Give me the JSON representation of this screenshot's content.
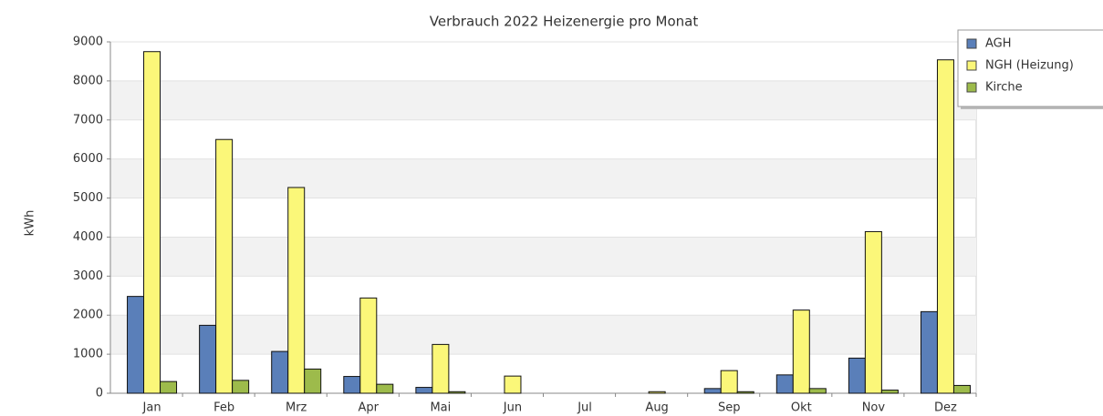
{
  "chart_data": {
    "type": "bar",
    "title": "Verbrauch 2022 Heizenergie pro Monat",
    "y_label": "kWh",
    "categories": [
      "Jan",
      "Feb",
      "Mrz",
      "Apr",
      "Mai",
      "Jun",
      "Jul",
      "Aug",
      "Sep",
      "Okt",
      "Nov",
      "Dez"
    ],
    "series": [
      {
        "name": "AGH",
        "color": "#5a7fb9",
        "values": [
          2480,
          1740,
          1070,
          430,
          150,
          0,
          0,
          0,
          120,
          470,
          900,
          2090
        ]
      },
      {
        "name": "NGH (Heizung)",
        "color": "#fbf779",
        "values": [
          8750,
          6500,
          5270,
          2440,
          1250,
          440,
          0,
          40,
          580,
          2130,
          4140,
          8540
        ]
      },
      {
        "name": "Kirche",
        "color": "#9dbb4b",
        "values": [
          300,
          330,
          620,
          230,
          40,
          0,
          0,
          0,
          40,
          120,
          80,
          200
        ]
      }
    ],
    "ylim": [
      0,
      9000
    ],
    "yticks": [
      0,
      1000,
      2000,
      3000,
      4000,
      5000,
      6000,
      7000,
      8000,
      9000
    ],
    "grid": true,
    "legend": "top-right"
  }
}
